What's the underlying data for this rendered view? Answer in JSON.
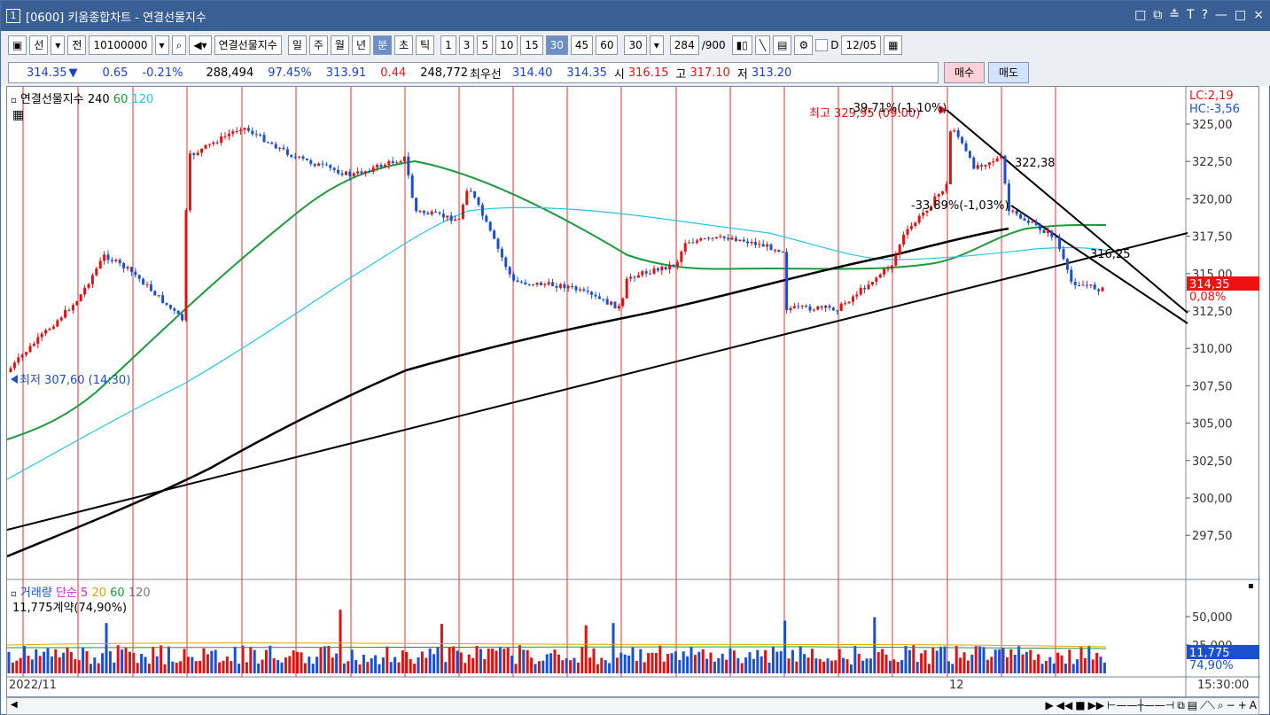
{
  "window": {
    "number": "1",
    "title": "[0600] 키움종합차트 - 연결선물지수",
    "controls": [
      "□",
      "⧉",
      "≛",
      "T",
      "?",
      "—",
      "□",
      "×"
    ]
  },
  "toolbar": {
    "mode": "선",
    "prefix": "전",
    "code": "10100000",
    "symbol_name": "연결선물지수",
    "periods": [
      "일",
      "주",
      "월",
      "년",
      "분",
      "초",
      "틱"
    ],
    "active_period": "분",
    "intervals": [
      "1",
      "3",
      "5",
      "10",
      "15",
      "30",
      "45",
      "60"
    ],
    "active_interval": "30",
    "interval_select": "30",
    "count": "284",
    "count_total": "/900",
    "checkbox_label": "D",
    "date": "12/05"
  },
  "quote": {
    "price": "314.35",
    "arrow": "▼",
    "change": "0.65",
    "change_pct": "-0.21%",
    "volume": "288,494",
    "vol_pct": "97.45%",
    "theory": "313.91",
    "basis": "0.44",
    "open_int": "248,772",
    "best_label": "최우선",
    "best_ask": "314.40",
    "best_bid": "314.35",
    "open_label": "시",
    "open": "316.15",
    "high_label": "고",
    "high": "317.10",
    "low_label": "저",
    "low": "313.20",
    "buy_label": "매수",
    "sell_label": "매도"
  },
  "price_panel": {
    "legend_name": "연결선물지수",
    "ma": [
      "240",
      "60",
      "120"
    ],
    "ma_colors": [
      "#000000",
      "#1a9a3a",
      "#22c4e8"
    ],
    "lc": "LC:2,19",
    "hc": "HC:-3,56",
    "current_price": "314,35",
    "current_pct": "0,08%",
    "high_marker": "최고 329,95 (09:00)",
    "low_marker": "최저 307,60 (14:30)",
    "annotation_1": "-39,71%(-1,10%)",
    "annotation_2": "-33,89%(-1,03%)",
    "label_322": "322,38",
    "label_316": "316,25",
    "y_ticks": [
      "325,00",
      "322,50",
      "320,00",
      "317,50",
      "315,00",
      "312,50",
      "310,00",
      "307,50",
      "305,00",
      "302,50",
      "300,00",
      "297,50"
    ]
  },
  "volume_panel": {
    "legend_name": "거래량",
    "ma_label": "단순",
    "ma": [
      "5",
      "20",
      "60",
      "120"
    ],
    "ma_colors": [
      "#cc22cc",
      "#e8a000",
      "#1a9a3a",
      "#777777"
    ],
    "current": "11,775계약(74,90%)",
    "y_ticks": [
      "50,000",
      "25,000"
    ],
    "current_value": "11,775",
    "current_pct": "74,90%"
  },
  "x_axis": {
    "left_label": "2022/11",
    "mid_label": "12",
    "right_label": "15:30:00"
  },
  "colors": {
    "up": "#e11111",
    "down": "#1a4fd0",
    "grid_red": "#e33333"
  }
}
